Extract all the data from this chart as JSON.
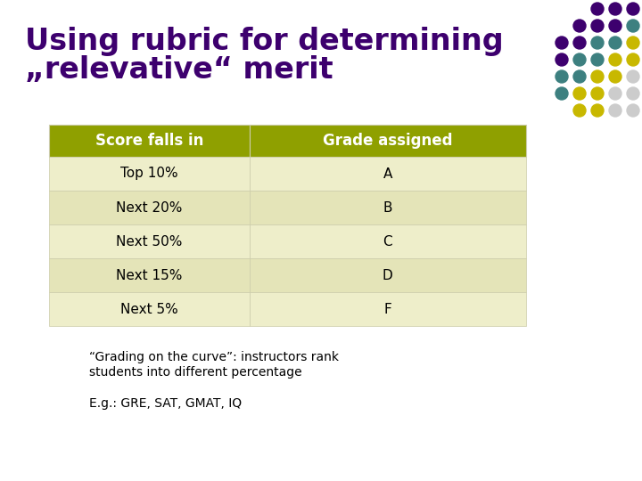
{
  "title_line1": "Using rubric for determining",
  "title_line2": "„relevative“ merit",
  "title_color": "#3d006e",
  "bg_color": "#ffffff",
  "header_bg": "#8fa000",
  "header_text_color": "#ffffff",
  "row_bg_odd": "#eeeeca",
  "row_bg_even": "#e4e4b8",
  "table_text_color": "#000000",
  "col1_header": "Score falls in",
  "col2_header": "Grade assigned",
  "rows": [
    [
      "Top 10%",
      "A"
    ],
    [
      "Next 20%",
      "B"
    ],
    [
      "Next 50%",
      "C"
    ],
    [
      "Next 15%",
      "D"
    ],
    [
      "Next 5%",
      "F"
    ]
  ],
  "footnote1": "“Grading on the curve”: instructors rank",
  "footnote2": "students into different percentage",
  "footnote3": "E.g.: GRE, SAT, GMAT, IQ",
  "dot_colors_grid": [
    [
      "#3d006e",
      "#3d006e",
      "#3d006e"
    ],
    [
      "#3d006e",
      "#3d006e",
      "#3d006e",
      "#3d8080"
    ],
    [
      "#3d006e",
      "#3d006e",
      "#3d8080",
      "#3d8080",
      "#c8b800"
    ],
    [
      "#3d006e",
      "#3d8080",
      "#3d8080",
      "#c8b800",
      "#c8b800"
    ],
    [
      "#3d8080",
      "#3d8080",
      "#c8b800",
      "#c8b800",
      "#cccccc"
    ],
    [
      "#3d8080",
      "#c8b800",
      "#c8b800",
      "#cccccc",
      "#cccccc"
    ],
    [
      "#c8b800",
      "#c8b800",
      "#cccccc",
      "#cccccc"
    ]
  ]
}
